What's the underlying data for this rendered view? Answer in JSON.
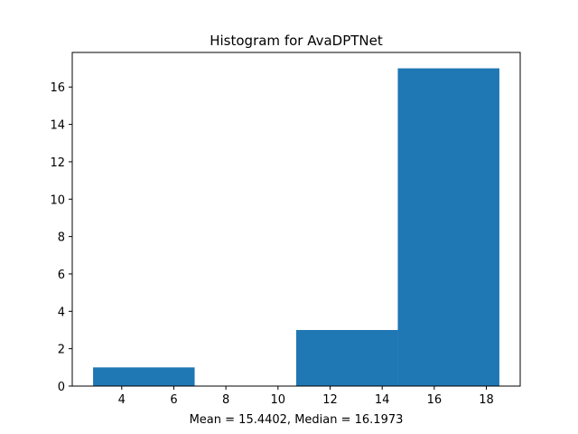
{
  "chart_data": {
    "type": "bar",
    "title": "Histogram for AvaDPTNet",
    "xlabel": "Mean = 15.4402, Median = 16.1973",
    "ylabel": "",
    "bins": [
      {
        "x0": 2.9,
        "x1": 6.8,
        "count": 1
      },
      {
        "x0": 6.8,
        "x1": 10.7,
        "count": 0
      },
      {
        "x0": 10.7,
        "x1": 14.6,
        "count": 3
      },
      {
        "x0": 14.6,
        "x1": 18.5,
        "count": 17
      }
    ],
    "xlim": [
      2.1,
      19.3
    ],
    "ylim": [
      0,
      17.85
    ],
    "xticks": [
      4,
      6,
      8,
      10,
      12,
      14,
      16,
      18
    ],
    "yticks": [
      0,
      2,
      4,
      6,
      8,
      10,
      12,
      14,
      16
    ],
    "bar_color": "#1f77b4",
    "grid": false,
    "legend": "none"
  }
}
